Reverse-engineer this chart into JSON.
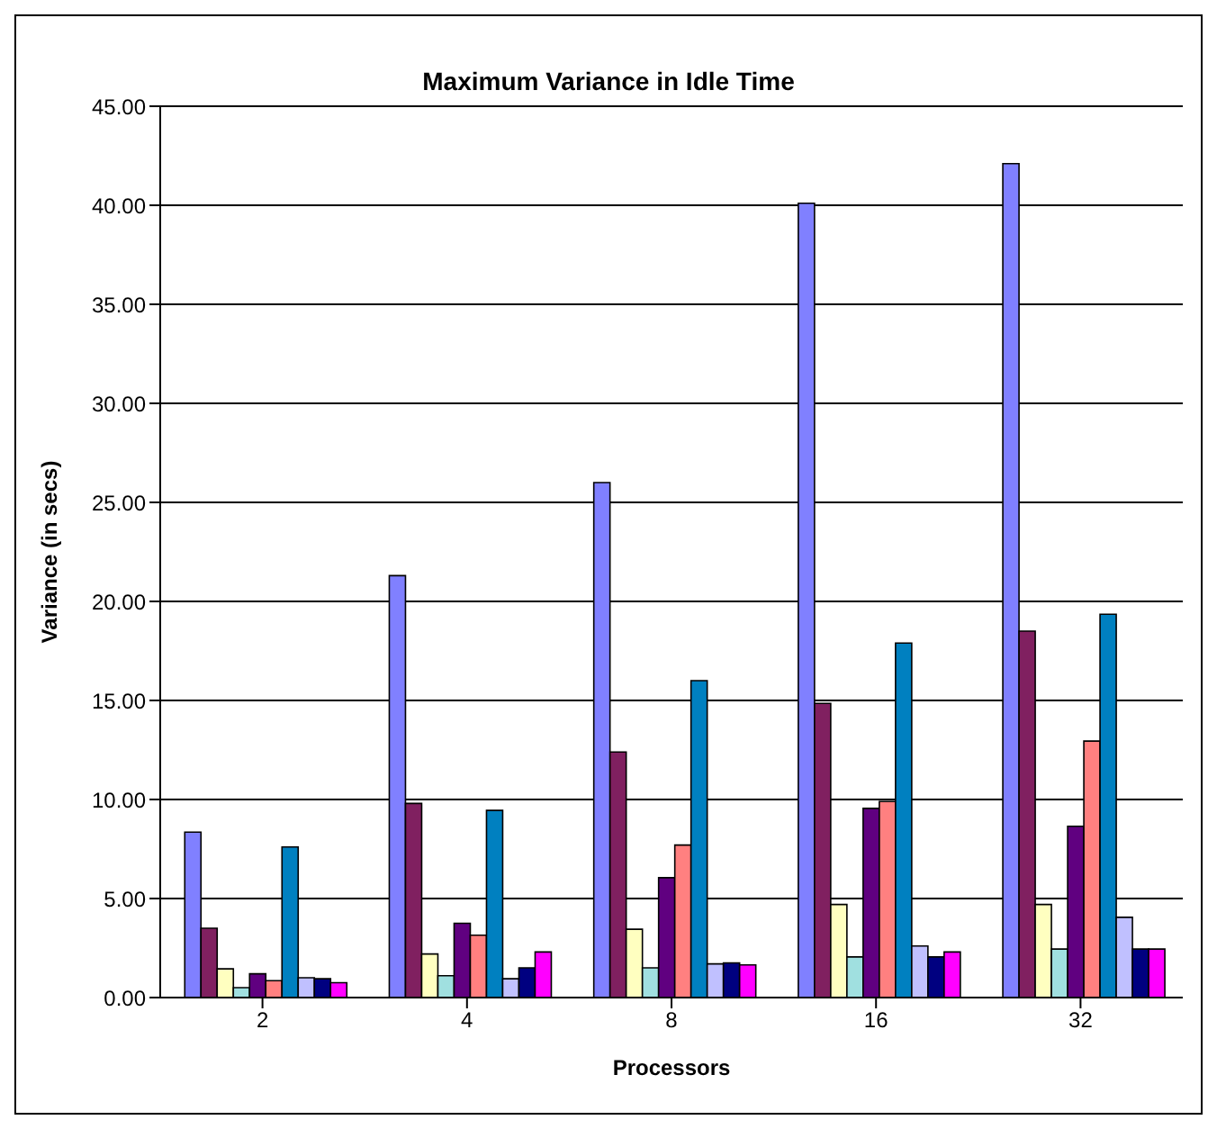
{
  "chart_data": {
    "type": "bar",
    "title": "Maximum Variance in Idle Time",
    "xlabel": "Processors",
    "ylabel": "Variance (in secs)",
    "categories": [
      "2",
      "4",
      "8",
      "16",
      "32"
    ],
    "series": [
      {
        "color": "#8080ff",
        "values": [
          8.35,
          21.3,
          26.0,
          40.1,
          42.1
        ]
      },
      {
        "color": "#802060",
        "values": [
          3.5,
          9.8,
          12.4,
          14.85,
          18.5
        ]
      },
      {
        "color": "#ffffc0",
        "values": [
          1.45,
          2.2,
          3.45,
          4.7,
          4.7
        ]
      },
      {
        "color": "#a0e0e0",
        "values": [
          0.5,
          1.1,
          1.5,
          2.05,
          2.45
        ]
      },
      {
        "color": "#600080",
        "values": [
          1.2,
          3.75,
          6.05,
          9.55,
          8.65
        ]
      },
      {
        "color": "#ff8080",
        "values": [
          0.85,
          3.15,
          7.7,
          9.9,
          12.95
        ]
      },
      {
        "color": "#0080c0",
        "values": [
          7.6,
          9.45,
          16.0,
          17.9,
          19.35
        ]
      },
      {
        "color": "#c0c0ff",
        "values": [
          1.0,
          0.95,
          1.7,
          2.6,
          4.05
        ]
      },
      {
        "color": "#000080",
        "values": [
          0.95,
          1.5,
          1.75,
          2.05,
          2.45
        ]
      },
      {
        "color": "#ff00ff",
        "values": [
          0.75,
          2.3,
          1.65,
          2.3,
          2.45
        ]
      }
    ],
    "ylim": [
      0,
      45
    ],
    "yticks": [
      {
        "value": 0,
        "label": "0.00"
      },
      {
        "value": 5,
        "label": "5.00"
      },
      {
        "value": 10,
        "label": "10.00"
      },
      {
        "value": 15,
        "label": "15.00"
      },
      {
        "value": 20,
        "label": "20.00"
      },
      {
        "value": 25,
        "label": "25.00"
      },
      {
        "value": 30,
        "label": "30.00"
      },
      {
        "value": 35,
        "label": "35.00"
      },
      {
        "value": 40,
        "label": "40.00"
      },
      {
        "value": 45,
        "label": "45.00"
      }
    ],
    "grid": "y",
    "legend": false
  }
}
